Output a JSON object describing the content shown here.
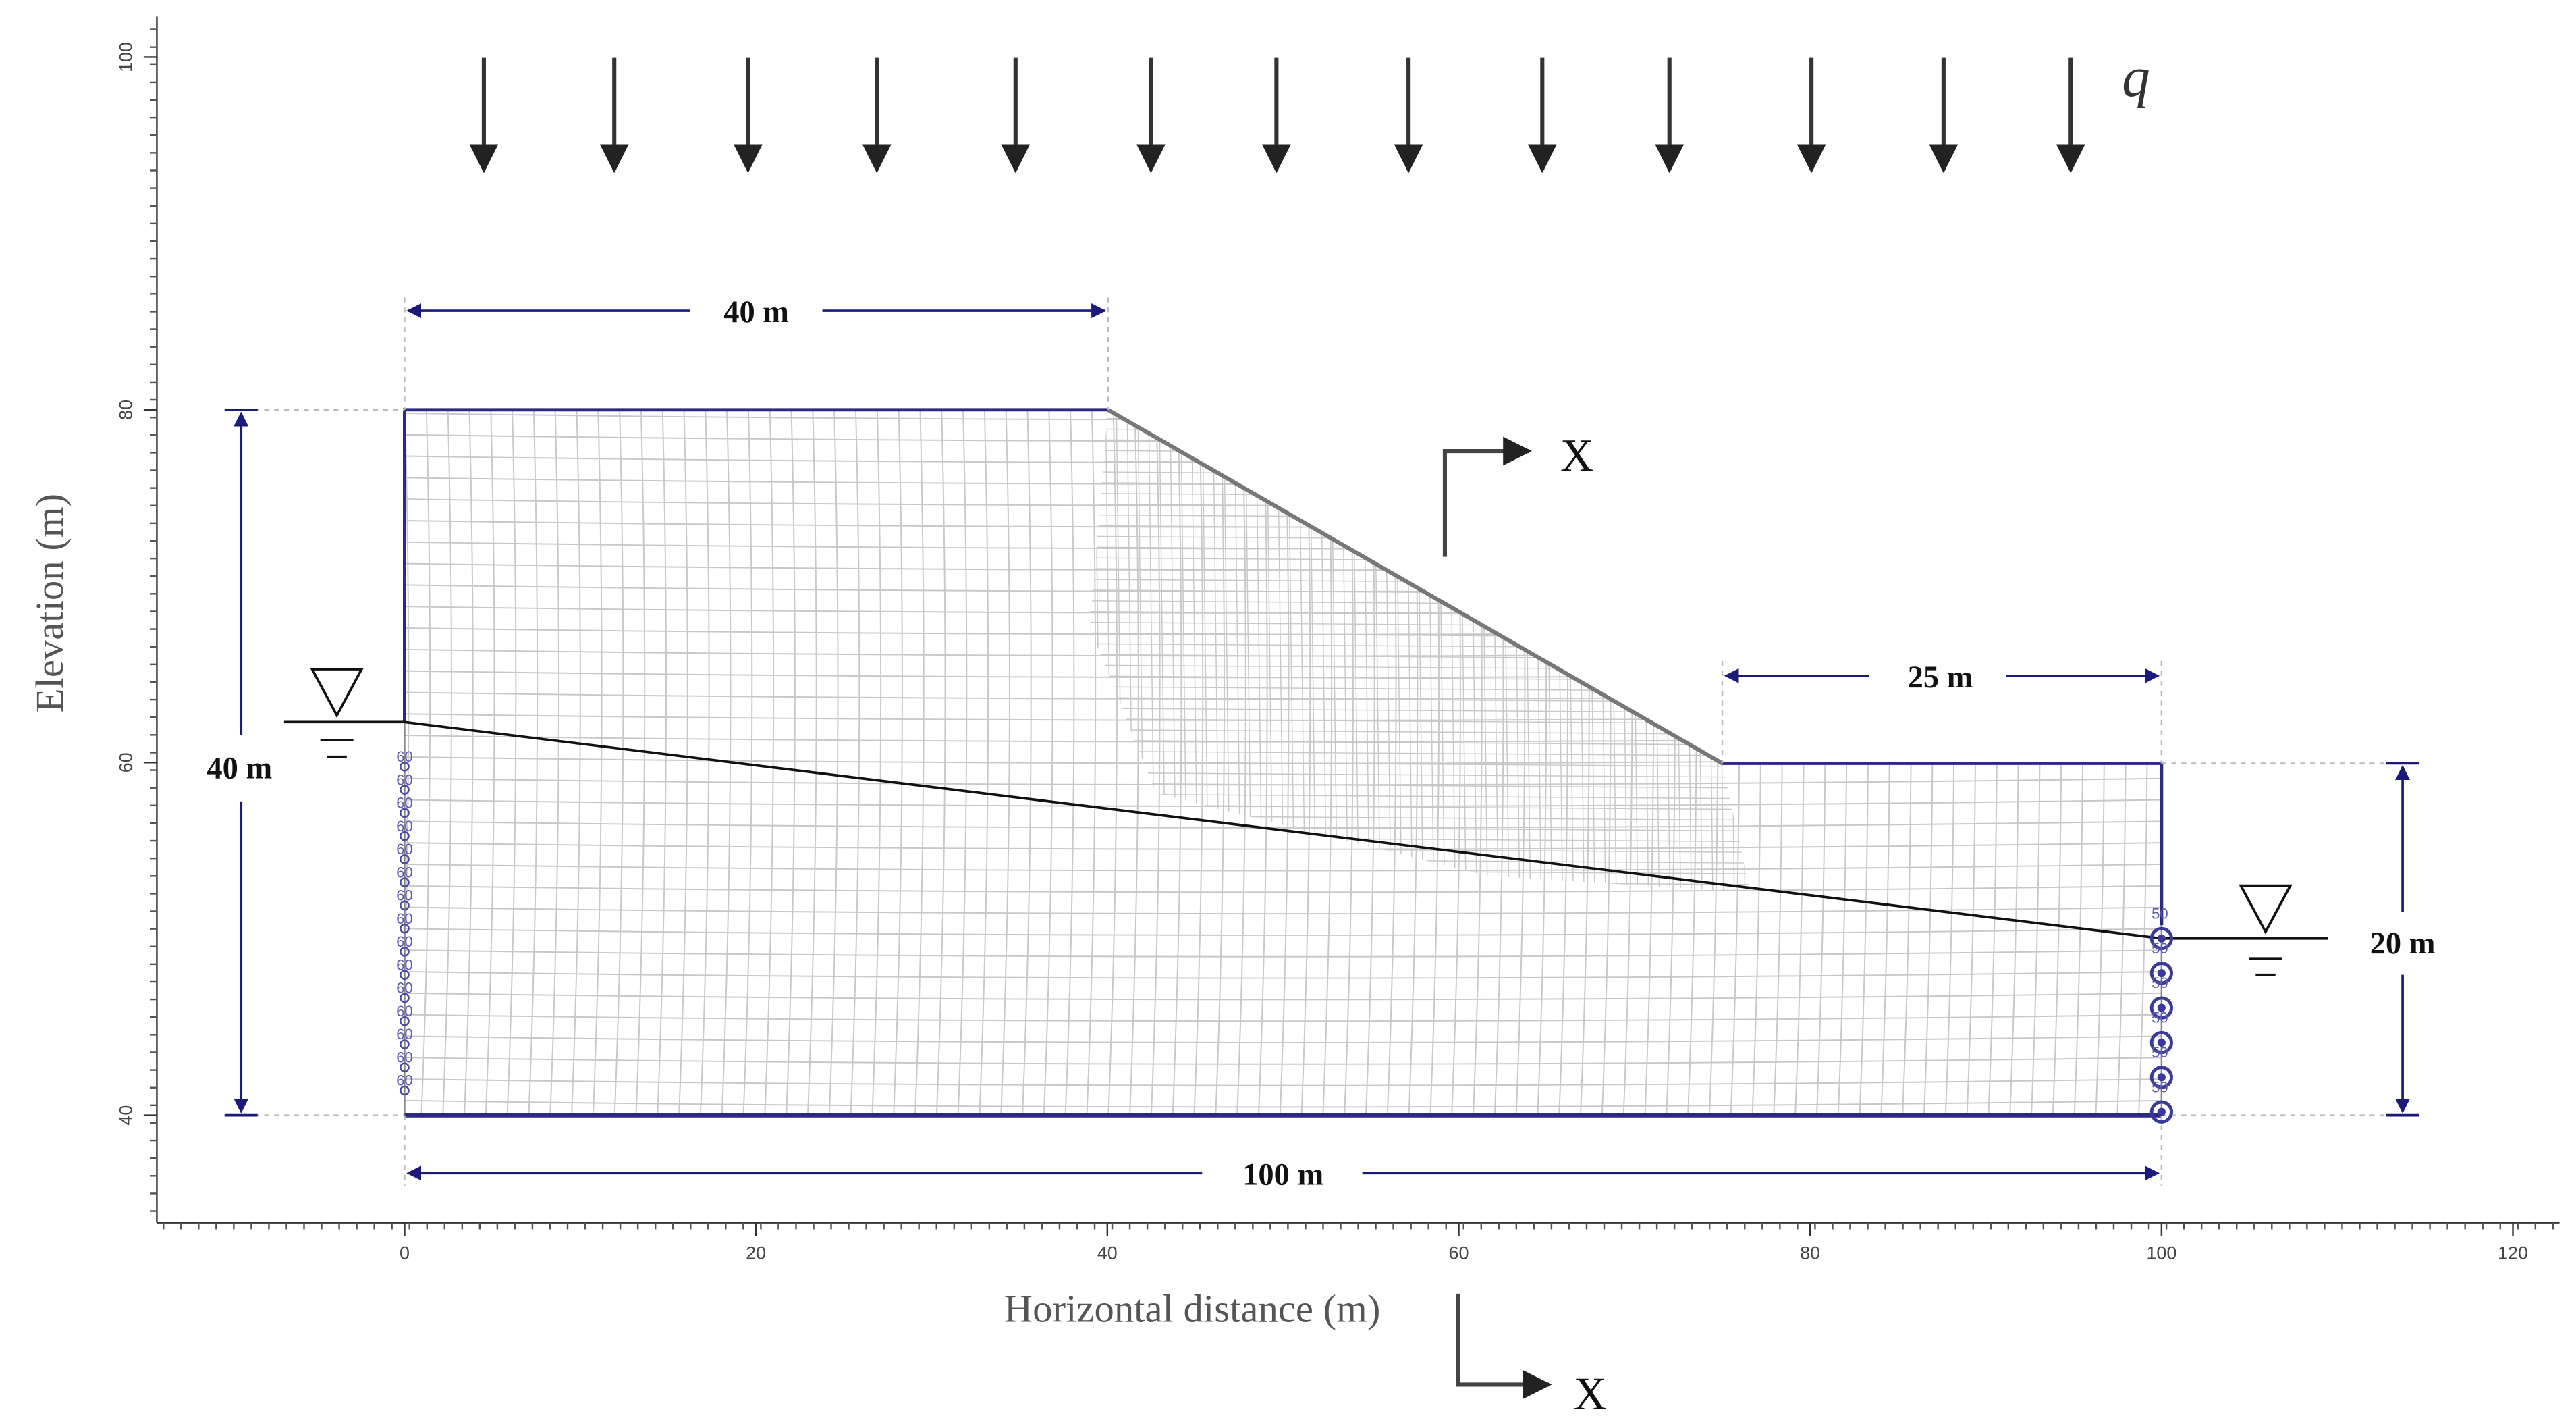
{
  "axes": {
    "x_label": "Horizontal distance (m)",
    "y_label": "Elevation (m)",
    "x_ticks": [
      0,
      20,
      40,
      60,
      80,
      100,
      120
    ],
    "y_ticks": [
      40,
      60,
      80,
      100
    ]
  },
  "load_label": "q",
  "dimensions": {
    "top_width": "40 m",
    "bench_width": "25 m",
    "left_height": "40 m",
    "right_height": "20 m",
    "base_width": "100 m"
  },
  "section_marks": [
    "X",
    "X"
  ],
  "boundary_labels": {
    "left": "60",
    "right": "50"
  }
}
